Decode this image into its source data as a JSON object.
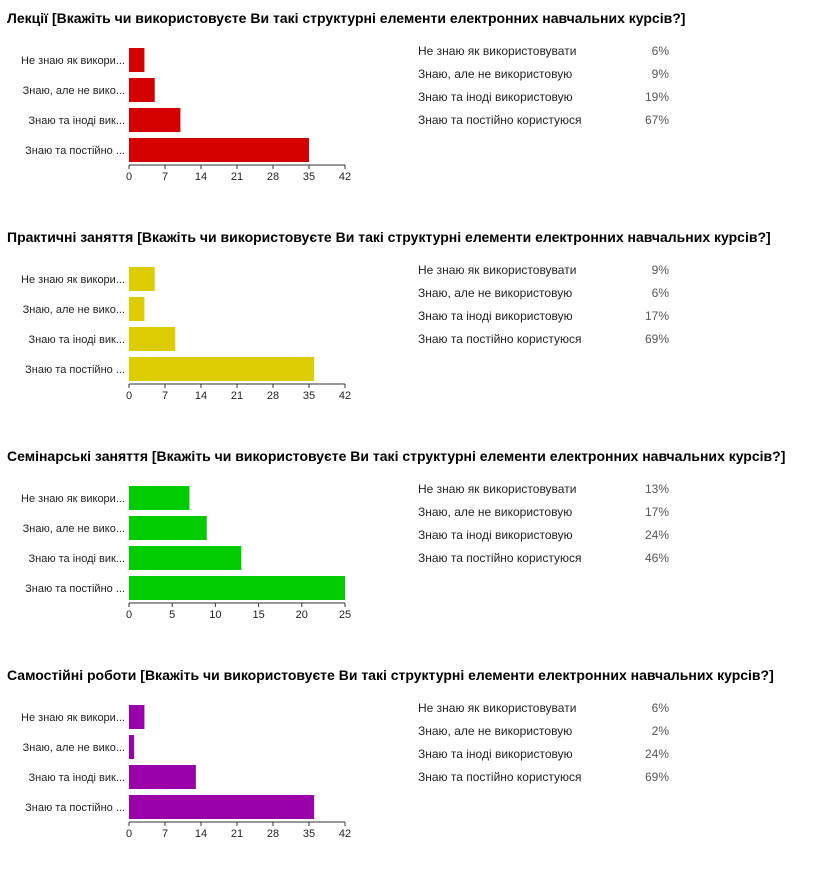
{
  "chart_data": [
    {
      "type": "bar",
      "orientation": "horizontal",
      "title": "Лекції [Вкажіть чи використовуєте Ви такі структурні елементи електронних навчальних курсів?]",
      "categories": [
        "Не знаю як викори...",
        "Знаю, але не вико...",
        "Знаю та іноді вик...",
        "Знаю та постійно ..."
      ],
      "values": [
        3,
        5,
        10,
        35
      ],
      "xlim": [
        0,
        42
      ],
      "ticks": [
        "0",
        "7",
        "14",
        "21",
        "28",
        "35",
        "42"
      ],
      "tick_values": [
        0,
        7,
        14,
        21,
        28,
        35,
        42
      ],
      "color": "#d50000",
      "legend": [
        {
          "label": "Не знаю як використовувати",
          "value": "6%"
        },
        {
          "label": "Знаю, але не використовую",
          "value": "9%"
        },
        {
          "label": "Знаю та іноді використовую",
          "value": "19%"
        },
        {
          "label": "Знаю та постійно користуюся",
          "value": "67%"
        }
      ]
    },
    {
      "type": "bar",
      "orientation": "horizontal",
      "title": "Практичні заняття [Вкажіть чи використовуєте Ви такі структурні елементи електронних навчальних курсів?]",
      "categories": [
        "Не знаю як викори...",
        "Знаю, але не вико...",
        "Знаю та іноді вик...",
        "Знаю та постійно ..."
      ],
      "values": [
        5,
        3,
        9,
        36
      ],
      "xlim": [
        0,
        42
      ],
      "ticks": [
        "0",
        "7",
        "14",
        "21",
        "28",
        "35",
        "42"
      ],
      "tick_values": [
        0,
        7,
        14,
        21,
        28,
        35,
        42
      ],
      "color": "#ddcc00",
      "legend": [
        {
          "label": "Не знаю як використовувати",
          "value": "9%"
        },
        {
          "label": "Знаю, але не використовую",
          "value": "6%"
        },
        {
          "label": "Знаю та іноді використовую",
          "value": "17%"
        },
        {
          "label": "Знаю та постійно користуюся",
          "value": "69%"
        }
      ]
    },
    {
      "type": "bar",
      "orientation": "horizontal",
      "title": "Семінарські заняття [Вкажіть чи використовуєте Ви такі структурні елементи електронних навчальних курсів?]",
      "categories": [
        "Не знаю як викори...",
        "Знаю, але не вико...",
        "Знаю та іноді вик...",
        "Знаю та постійно ..."
      ],
      "values": [
        7,
        9,
        13,
        25
      ],
      "xlim": [
        0,
        25
      ],
      "ticks": [
        "0",
        "5",
        "10",
        "15",
        "20",
        "25"
      ],
      "tick_values": [
        0,
        5,
        10,
        15,
        20,
        25
      ],
      "color": "#00cc00",
      "legend": [
        {
          "label": "Не знаю як використовувати",
          "value": "13%"
        },
        {
          "label": "Знаю, але не використовую",
          "value": "17%"
        },
        {
          "label": "Знаю та іноді використовую",
          "value": "24%"
        },
        {
          "label": "Знаю та постійно користуюся",
          "value": "46%"
        }
      ]
    },
    {
      "type": "bar",
      "orientation": "horizontal",
      "title": "Самостійні роботи [Вкажіть чи використовуєте Ви такі структурні елементи електронних навчальних курсів?]",
      "categories": [
        "Не знаю як викори...",
        "Знаю, але не вико...",
        "Знаю та іноді вик...",
        "Знаю та постійно ..."
      ],
      "values": [
        3,
        1,
        13,
        36
      ],
      "xlim": [
        0,
        42
      ],
      "ticks": [
        "0",
        "7",
        "14",
        "21",
        "28",
        "35",
        "42"
      ],
      "tick_values": [
        0,
        7,
        14,
        21,
        28,
        35,
        42
      ],
      "color": "#9900aa",
      "legend": [
        {
          "label": "Не знаю як використовувати",
          "value": "6%"
        },
        {
          "label": "Знаю, але не використовую",
          "value": "2%"
        },
        {
          "label": "Знаю та іноді використовую",
          "value": "24%"
        },
        {
          "label": "Знаю та постійно користуюся",
          "value": "69%"
        }
      ]
    }
  ]
}
